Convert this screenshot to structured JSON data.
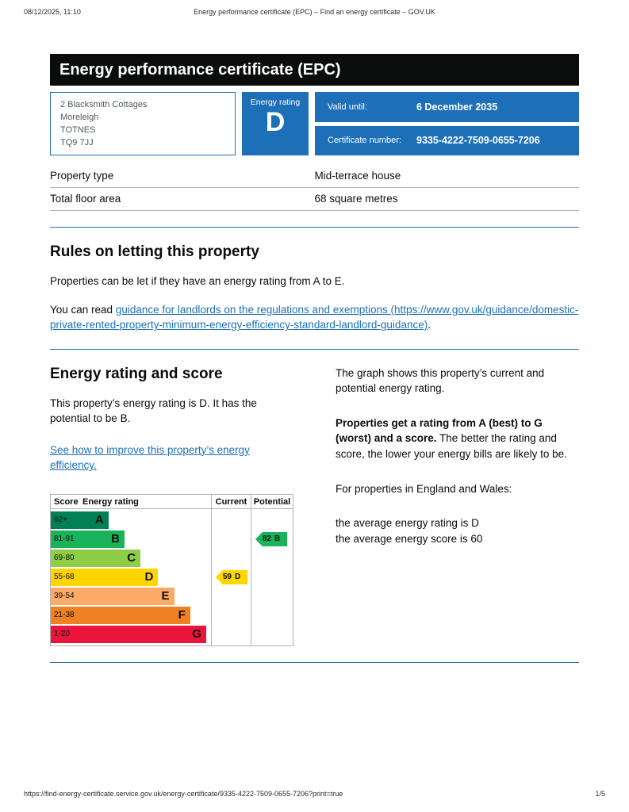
{
  "colors": {
    "govuk_blue": "#1d70b8",
    "banner_bg": "#0b0c0c"
  },
  "print_header": {
    "datetime": "08/12/2025, 11:10",
    "title": "Energy performance certificate (EPC) – Find an energy certificate – GOV.UK"
  },
  "print_footer": {
    "url": "https://find-energy-certificate.service.gov.uk/energy-certificate/9335-4222-7509-0655-7206?print=true",
    "page_number": "1/5"
  },
  "banner": {
    "title": "Energy performance certificate (EPC)"
  },
  "summary": {
    "address_lines": [
      "2 Blacksmith Cottages",
      "Moreleigh",
      "TOTNES",
      "TQ9 7JJ"
    ],
    "energy_rating_label": "Energy rating",
    "energy_rating_value": "D",
    "valid_until_label": "Valid until:",
    "valid_until_value": "6 December 2035",
    "certificate_number_label": "Certificate number:",
    "certificate_number_value": "9335-4222-7509-0655-7206"
  },
  "property_details": {
    "rows": [
      {
        "label": "Property type",
        "value": "Mid-terrace house"
      },
      {
        "label": "Total floor area",
        "value": "68 square metres"
      }
    ]
  },
  "letting_rules": {
    "heading": "Rules on letting this property",
    "paragraph1": "Properties can be let if they have an energy rating from A to E.",
    "paragraph2_prefix": "You can read ",
    "link_text": "guidance for landlords on the regulations and exemptions (https://www.gov.uk/guidance/domestic-private-rented-property-minimum-energy-efficiency-standard-landlord-guidance)",
    "paragraph2_suffix": "."
  },
  "rating_section": {
    "heading": "Energy rating and score",
    "summary_paragraph": "This property’s energy rating is D. It has the potential to be B.",
    "improve_link": "See how to improve this property’s energy efficiency.",
    "graph_paragraph": "The graph shows this property’s current and potential energy rating.",
    "explainer_bold": "Properties get a rating from A (best) to G (worst) and a score.",
    "explainer_rest": " The better the rating and score, the lower your energy bills are likely to be.",
    "england_wales_paragraph": "For properties in England and Wales:",
    "average_rating_line": "the average energy rating is D",
    "average_score_line": "the average energy score is 60"
  },
  "chart_data": {
    "type": "epc-rating-chart",
    "title": "Energy rating and score chart",
    "headers": [
      "Score",
      "Energy rating",
      "Current",
      "Potential"
    ],
    "bands": [
      {
        "score": "92+",
        "letter": "A",
        "color": "#008054",
        "width_pct": 36
      },
      {
        "score": "81-91",
        "letter": "B",
        "color": "#19b459",
        "width_pct": 46
      },
      {
        "score": "69-80",
        "letter": "C",
        "color": "#8dce46",
        "width_pct": 56
      },
      {
        "score": "55-68",
        "letter": "D",
        "color": "#ffd500",
        "width_pct": 67
      },
      {
        "score": "39-54",
        "letter": "E",
        "color": "#fcaa65",
        "width_pct": 77
      },
      {
        "score": "21-38",
        "letter": "F",
        "color": "#ef8023",
        "width_pct": 87
      },
      {
        "score": "1-20",
        "letter": "G",
        "color": "#e9153b",
        "width_pct": 97
      }
    ],
    "current": {
      "score": "59",
      "letter": "D",
      "band_index": 3,
      "color": "#ffd500"
    },
    "potential": {
      "score": "82",
      "letter": "B",
      "band_index": 1,
      "color": "#19b459"
    }
  }
}
